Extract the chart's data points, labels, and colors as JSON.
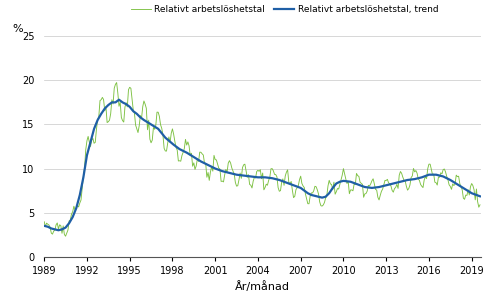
{
  "ylabel": "%",
  "xlabel": "År/månad",
  "legend_labels": [
    "Relativt arbetslöshetstal",
    "Relativt arbetslöshetstal, trend"
  ],
  "line_color": "#7dc142",
  "trend_color": "#1f5fa6",
  "background_color": "#ffffff",
  "grid_color": "#c8c8c8",
  "ylim": [
    0,
    25
  ],
  "yticks": [
    0,
    5,
    10,
    15,
    20,
    25
  ],
  "xticks": [
    1989,
    1992,
    1995,
    1998,
    2001,
    2004,
    2007,
    2010,
    2013,
    2016,
    2019
  ],
  "knot_t": [
    1989.0,
    1989.25,
    1989.5,
    1989.75,
    1990.0,
    1990.25,
    1990.5,
    1990.75,
    1991.0,
    1991.25,
    1991.5,
    1991.75,
    1992.0,
    1992.25,
    1992.5,
    1992.75,
    1993.0,
    1993.25,
    1993.5,
    1993.75,
    1994.0,
    1994.25,
    1994.5,
    1994.75,
    1995.0,
    1995.25,
    1995.5,
    1995.75,
    1996.0,
    1996.5,
    1997.0,
    1997.5,
    1998.0,
    1998.5,
    1999.0,
    1999.5,
    2000.0,
    2000.5,
    2001.0,
    2001.5,
    2002.0,
    2002.5,
    2003.0,
    2003.5,
    2004.0,
    2004.5,
    2005.0,
    2005.5,
    2006.0,
    2006.5,
    2007.0,
    2007.25,
    2007.5,
    2007.75,
    2008.0,
    2008.25,
    2008.5,
    2008.75,
    2009.0,
    2009.25,
    2009.5,
    2009.75,
    2010.0,
    2010.5,
    2011.0,
    2011.5,
    2012.0,
    2012.5,
    2013.0,
    2013.5,
    2014.0,
    2014.5,
    2015.0,
    2015.5,
    2016.0,
    2016.5,
    2017.0,
    2017.5,
    2018.0,
    2018.5,
    2019.0,
    2019.67
  ],
  "knot_v": [
    3.5,
    3.4,
    3.2,
    3.1,
    3.0,
    3.1,
    3.3,
    3.8,
    4.5,
    5.5,
    7.0,
    9.0,
    11.5,
    13.0,
    14.5,
    15.5,
    16.2,
    16.8,
    17.2,
    17.5,
    17.5,
    17.8,
    17.5,
    17.3,
    17.0,
    16.5,
    16.2,
    15.8,
    15.5,
    15.0,
    14.5,
    13.5,
    12.8,
    12.2,
    11.8,
    11.3,
    10.8,
    10.4,
    10.0,
    9.7,
    9.5,
    9.3,
    9.2,
    9.1,
    9.0,
    9.0,
    8.9,
    8.7,
    8.4,
    8.1,
    7.8,
    7.5,
    7.2,
    7.0,
    6.9,
    6.8,
    6.7,
    6.8,
    7.2,
    7.8,
    8.3,
    8.5,
    8.6,
    8.5,
    8.2,
    7.9,
    7.8,
    7.9,
    8.1,
    8.3,
    8.5,
    8.7,
    8.8,
    9.0,
    9.3,
    9.3,
    9.1,
    8.7,
    8.2,
    7.7,
    7.2,
    6.8
  ],
  "seasonal_amp_t": [
    1989.0,
    1991.0,
    1992.0,
    1993.5,
    1994.5,
    2000.0,
    2008.0,
    2019.67
  ],
  "seasonal_amp_v": [
    0.4,
    0.8,
    1.5,
    2.0,
    2.2,
    1.2,
    1.0,
    0.9
  ],
  "noise_std": 0.25,
  "random_seed": 17
}
